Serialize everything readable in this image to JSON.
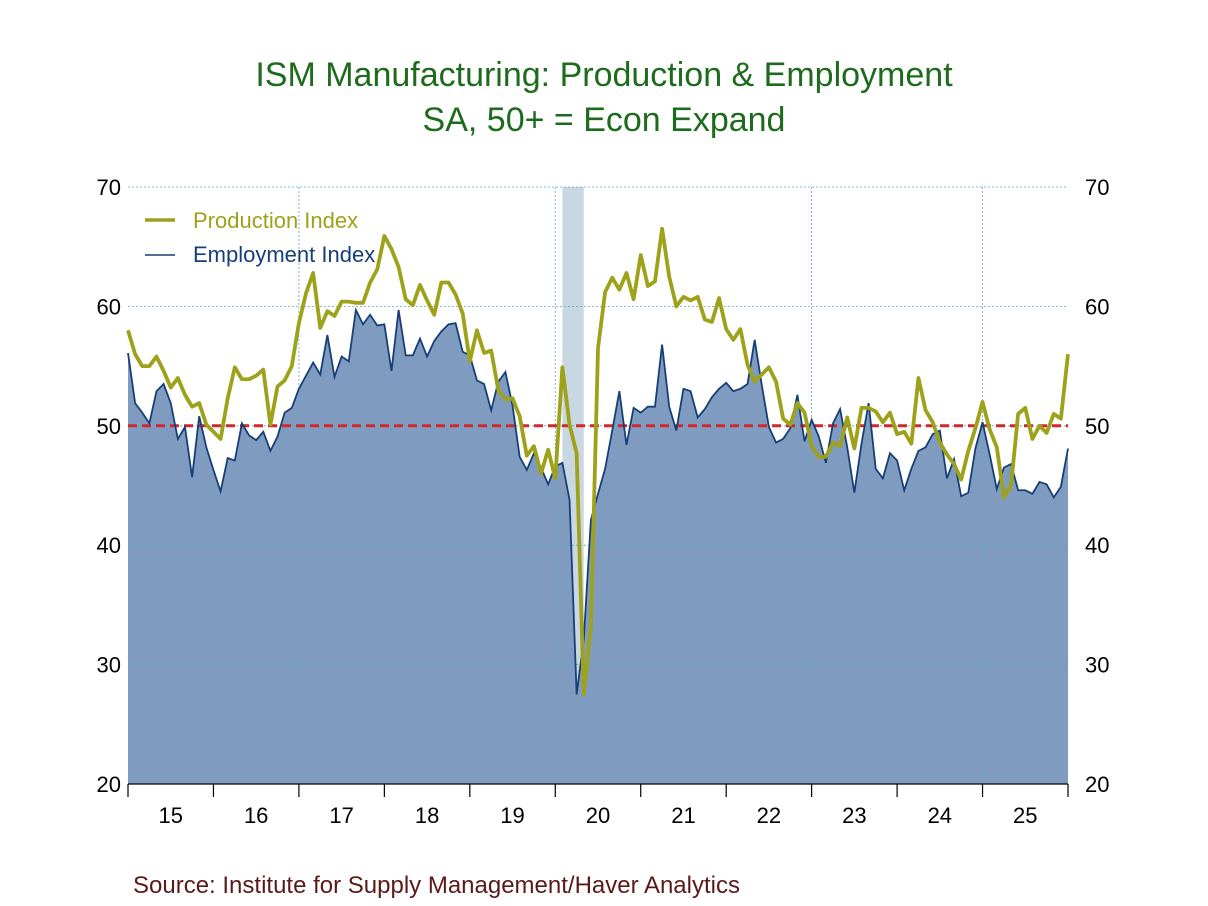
{
  "chart_data": {
    "type": "line",
    "title": "ISM Manufacturing: Production & Employment",
    "subtitle": "SA, 50+ = Econ Expand",
    "source": "Source:  Institute for Supply Management/Haver Analytics",
    "x_start": "2015-01",
    "x_end": "2025-12",
    "ylim": [
      20,
      70
    ],
    "y_ticks": [
      "20",
      "30",
      "40",
      "50",
      "60",
      "70"
    ],
    "x_tick_labels": [
      "15",
      "16",
      "17",
      "18",
      "19",
      "20",
      "21",
      "22",
      "23",
      "24",
      "25"
    ],
    "reference_line": 50,
    "recession_shade": [
      "2020-02",
      "2020-04"
    ],
    "grid": true,
    "legend_position": "top-left",
    "colors": {
      "production": "#9ea21a",
      "employment_line": "#173f77",
      "employment_fill": "#7f9cc0",
      "reference": "#d3272c",
      "recession": "#c9d7e3",
      "grid": "#5aa9b8"
    },
    "series": [
      {
        "name": "Production Index",
        "style": "line",
        "values": [
          58,
          56,
          55,
          55,
          55.8,
          54.6,
          53.2,
          54,
          52.6,
          51.6,
          51.9,
          50.1,
          49.5,
          48.9,
          52.3,
          54.9,
          53.9,
          53.9,
          54.2,
          54.7,
          50.1,
          53.3,
          53.8,
          55,
          58.6,
          61.1,
          62.8,
          58.2,
          59.6,
          59.2,
          60.4,
          60.4,
          60.3,
          60.3,
          62,
          63.1,
          65.9,
          64.8,
          63.3,
          60.6,
          60.1,
          61.8,
          60.5,
          59.3,
          62,
          62,
          61,
          59.4,
          55.4,
          58,
          56.1,
          56.3,
          53,
          52.2,
          52.3,
          50.8,
          47.5,
          48.3,
          46,
          48,
          45.6,
          54.9,
          50.1,
          47.7,
          27.5,
          33.2,
          56.5,
          61.2,
          62.4,
          61.4,
          62.8,
          60.6,
          64.3,
          61.7,
          62.1,
          66.5,
          62.5,
          60,
          60.8,
          60.5,
          60.8,
          58.9,
          58.7,
          60.7,
          58.1,
          57.2,
          58.1,
          55.1,
          53.7,
          54.3,
          54.9,
          53.7,
          50.6,
          50.1,
          51.9,
          51.1,
          48.3,
          47.4,
          47.4,
          48.6,
          48.3,
          50.7,
          48.1,
          51.5,
          51.5,
          51.2,
          50.3,
          51.1,
          49.3,
          49.5,
          48.5,
          54,
          51.3,
          50.3,
          48.6,
          47.6,
          46.8,
          45.5,
          47.9,
          49.8,
          52,
          49.7,
          48.2,
          44,
          45,
          51,
          51.5,
          48.9,
          50,
          49.4,
          51,
          50.6,
          56
        ]
      },
      {
        "name": "Employment Index",
        "style": "area",
        "values": [
          56.1,
          51.9,
          51.1,
          50.2,
          52.9,
          53.5,
          51.9,
          48.9,
          49.9,
          45.7,
          50.8,
          48.2,
          46.3,
          44.5,
          47.3,
          47.1,
          50.2,
          49.2,
          48.8,
          49.5,
          47.9,
          49.1,
          51.1,
          51.5,
          53.1,
          54.2,
          55.3,
          54.3,
          57.6,
          54.1,
          55.8,
          55.4,
          59.7,
          58.5,
          59.3,
          58.4,
          58.5,
          54.6,
          59.7,
          55.9,
          55.9,
          57.3,
          55.8,
          57.1,
          57.9,
          58.5,
          58.6,
          56.2,
          55.9,
          53.8,
          53.5,
          51.3,
          53.7,
          54.5,
          51.7,
          47.4,
          46.3,
          47.7,
          46.5,
          45.1,
          46.6,
          46.9,
          43.8,
          27.5,
          32.1,
          42.1,
          44.3,
          46.4,
          49.6,
          52.9,
          48.4,
          51.5,
          51.1,
          51.6,
          51.6,
          56.8,
          51.6,
          49.6,
          53.1,
          52.9,
          50.7,
          51.4,
          52.4,
          53.1,
          53.6,
          52.9,
          53.1,
          53.5,
          57.2,
          53.4,
          49.9,
          48.6,
          48.9,
          49.8,
          52.6,
          48.7,
          50.5,
          49.1,
          46.9,
          50.2,
          51.4,
          48.2,
          44.4,
          48.5,
          51.9,
          46.4,
          45.6,
          47.7,
          47.1,
          44.6,
          46.4,
          47.9,
          48.2,
          49.3,
          49.6,
          45.6,
          47.2,
          44.1,
          44.4,
          48.1,
          50.3,
          47.6,
          44.7,
          46.5,
          46.8,
          44.6,
          44.6,
          44.3,
          45.3,
          45.1,
          44,
          44.9,
          48.1
        ]
      }
    ]
  }
}
